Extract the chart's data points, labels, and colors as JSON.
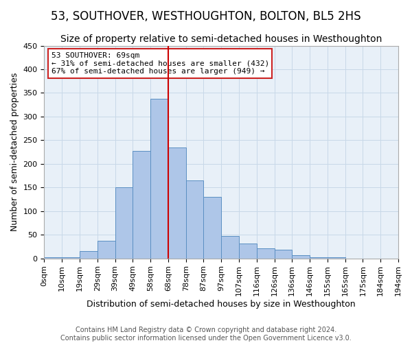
{
  "title": "53, SOUTHOVER, WESTHOUGHTON, BOLTON, BL5 2HS",
  "subtitle": "Size of property relative to semi-detached houses in Westhoughton",
  "xlabel": "Distribution of semi-detached houses by size in Westhoughton",
  "ylabel": "Number of semi-detached properties",
  "footer_line1": "Contains HM Land Registry data © Crown copyright and database right 2024.",
  "footer_line2": "Contains public sector information licensed under the Open Government Licence v3.0.",
  "bin_labels": [
    "0sqm",
    "10sqm",
    "19sqm",
    "29sqm",
    "39sqm",
    "49sqm",
    "58sqm",
    "68sqm",
    "78sqm",
    "87sqm",
    "97sqm",
    "107sqm",
    "116sqm",
    "126sqm",
    "136sqm",
    "146sqm",
    "155sqm",
    "165sqm",
    "175sqm",
    "184sqm",
    "194sqm"
  ],
  "bar_heights": [
    2,
    2,
    15,
    37,
    150,
    228,
    337,
    234,
    165,
    130,
    47,
    32,
    21,
    18,
    7,
    2,
    2,
    0,
    0,
    0
  ],
  "bar_color": "#aec6e8",
  "bar_edge_color": "#5a8fc2",
  "property_label": "53 SOUTHOVER: 69sqm",
  "annotation_line1": "← 31% of semi-detached houses are smaller (432)",
  "annotation_line2": "67% of semi-detached houses are larger (949) →",
  "vline_color": "#cc0000",
  "vline_x_index": 7,
  "annotation_box_color": "#cc2222",
  "ylim": [
    0,
    450
  ],
  "yticks": [
    0,
    50,
    100,
    150,
    200,
    250,
    300,
    350,
    400,
    450
  ],
  "background_color": "#ffffff",
  "grid_color": "#c8d8e8",
  "title_fontsize": 12,
  "subtitle_fontsize": 10,
  "axis_label_fontsize": 9,
  "tick_fontsize": 8,
  "footer_fontsize": 7,
  "annotation_fontsize": 8
}
